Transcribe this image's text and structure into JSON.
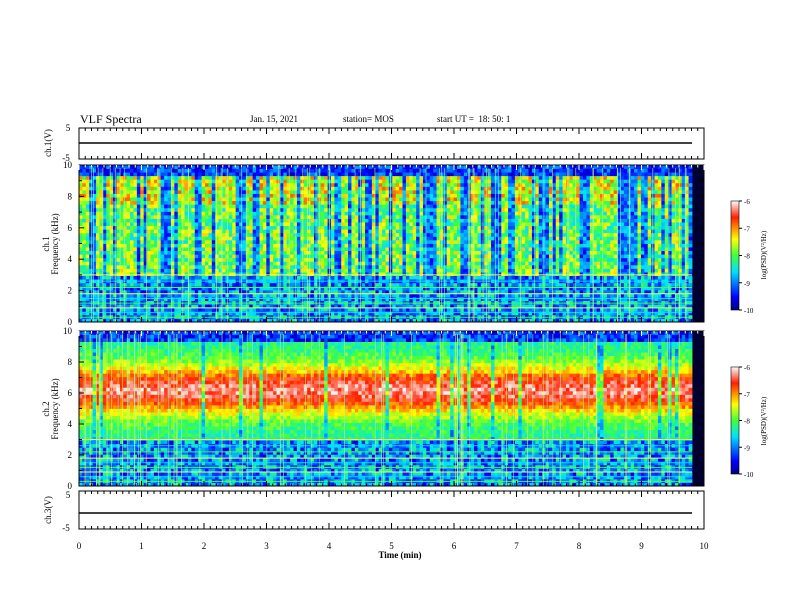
{
  "header": {
    "title": "VLF Spectra",
    "date": "Jan. 15, 2021",
    "station": "station= MOS",
    "start": "start UT =  18: 50: 1"
  },
  "chart_data": [
    {
      "type": "line",
      "name": "ch.1 waveform",
      "ylabel": "ch.1(V)",
      "ylim": [
        -5,
        5
      ],
      "yticks": [
        "5",
        "-5"
      ],
      "xlim": [
        0,
        10
      ],
      "series": [
        {
          "values": [
            0
          ]
        }
      ]
    },
    {
      "type": "heatmap",
      "name": "ch.1 spectrogram",
      "ylabel_lines": [
        "ch.1",
        "Frequency (kHz)"
      ],
      "ylim": [
        0,
        10
      ],
      "yticks": [
        "0",
        "2",
        "4",
        "6",
        "8",
        "10"
      ],
      "xlim": [
        0,
        10
      ],
      "colorbar": {
        "label": "log(PSD)(V²/Hz)",
        "range": [
          -10,
          -6
        ],
        "ticks": [
          "-6",
          "-7",
          "-8",
          "-9",
          "-10"
        ]
      },
      "description_bands_kHz": [
        0.3,
        0.6,
        0.9,
        1.2,
        1.5,
        1.8,
        2.2,
        2.6,
        3.0
      ]
    },
    {
      "type": "heatmap",
      "name": "ch.2 spectrogram",
      "ylabel_lines": [
        "ch.2",
        "Frequency (kHz)"
      ],
      "ylim": [
        0,
        10
      ],
      "yticks": [
        "0",
        "2",
        "4",
        "6",
        "8",
        "10"
      ],
      "xlim": [
        0,
        10
      ],
      "colorbar": {
        "label": "log(PSD)(V²/Hz)",
        "range": [
          -10,
          -6
        ],
        "ticks": [
          "-6",
          "-7",
          "-8",
          "-9",
          "-10"
        ]
      },
      "description_bands_kHz": [
        0.3,
        0.6,
        0.9,
        1.2,
        1.5,
        1.8,
        2.2,
        2.6,
        3.0
      ]
    },
    {
      "type": "line",
      "name": "ch.3 waveform",
      "ylabel": "ch.3(V)",
      "ylim": [
        -5,
        5
      ],
      "yticks": [
        "5",
        "-5"
      ],
      "xlim": [
        0,
        10
      ],
      "xticks": [
        "0",
        "1",
        "2",
        "3",
        "4",
        "5",
        "6",
        "7",
        "8",
        "9",
        "10"
      ],
      "xlabel": "Time (min)",
      "series": [
        {
          "values": [
            -1.5
          ]
        }
      ]
    }
  ]
}
